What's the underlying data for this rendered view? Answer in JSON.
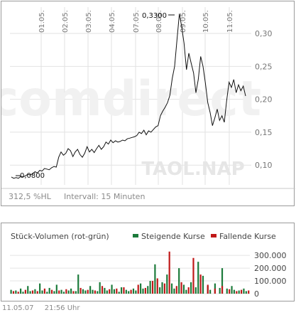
{
  "price_panel": {
    "watermark_brand": "comdirect",
    "watermark_symbol": "TAOL.NAP",
    "performance_label": "312,5 %HL",
    "interval_label": "Intervall: 15 Minuten",
    "high_label": "0,3300",
    "low_label": "0,0800"
  },
  "volume_panel": {
    "title": "Stück-Volumen (rot-grün)",
    "legend_up_label": "Steigende Kurse",
    "legend_down_label": "Fallende Kurse",
    "legend_up_color": "#1b7a3a",
    "legend_down_color": "#c01818"
  },
  "footer": {
    "date": "11.05.07",
    "time": "21:56 Uhr"
  },
  "chart_data": [
    {
      "type": "line",
      "x_tick_labels": [
        "01.05.",
        "02.05.",
        "03.05.",
        "04.05.",
        "07.05.",
        "08.05.",
        "09.05.",
        "10.05.",
        "11.05."
      ],
      "y_tick_labels": [
        "0,30",
        "0,25",
        "0,20",
        "0,15",
        "0,10"
      ],
      "ylim": [
        0.07,
        0.34
      ],
      "grid": true,
      "annotations": [
        "0,3300",
        "0,0800"
      ],
      "series": [
        {
          "values": [
            0.082,
            0.08,
            0.081,
            0.08,
            0.083,
            0.082,
            0.084,
            0.086,
            0.085,
            0.087,
            0.09,
            0.088,
            0.092,
            0.091,
            0.095,
            0.094,
            0.093,
            0.096,
            0.098,
            0.097,
            0.112,
            0.12,
            0.115,
            0.118,
            0.125,
            0.122,
            0.113,
            0.12,
            0.124,
            0.116,
            0.112,
            0.118,
            0.128,
            0.12,
            0.124,
            0.119,
            0.125,
            0.13,
            0.124,
            0.128,
            0.135,
            0.132,
            0.138,
            0.134,
            0.137,
            0.135,
            0.136,
            0.138,
            0.137,
            0.14,
            0.141,
            0.142,
            0.143,
            0.145,
            0.15,
            0.148,
            0.153,
            0.146,
            0.152,
            0.15,
            0.154,
            0.158,
            0.16,
            0.175,
            0.182,
            0.188,
            0.195,
            0.206,
            0.232,
            0.25,
            0.29,
            0.33,
            0.31,
            0.285,
            0.245,
            0.27,
            0.255,
            0.24,
            0.21,
            0.23,
            0.265,
            0.25,
            0.225,
            0.195,
            0.18,
            0.16,
            0.172,
            0.185,
            0.168,
            0.175,
            0.165,
            0.198,
            0.226,
            0.218,
            0.23,
            0.21,
            0.222,
            0.213,
            0.22,
            0.205
          ]
        }
      ]
    },
    {
      "type": "bar",
      "y_tick_labels": [
        "300.000",
        "200.000",
        "100.000",
        "0"
      ],
      "ylim": [
        0,
        340000
      ],
      "series": [
        {
          "name": "Steigende Kurse",
          "values": [
            30000,
            0,
            25000,
            0,
            40000,
            15000,
            0,
            60000,
            20000,
            0,
            35000,
            0,
            80000,
            25000,
            0,
            15000,
            45000,
            0,
            20000,
            70000,
            0,
            30000,
            15000,
            0,
            25000,
            40000,
            0,
            20000,
            150000,
            0,
            35000,
            25000,
            0,
            60000,
            30000,
            0,
            20000,
            90000,
            0,
            45000,
            25000,
            0,
            70000,
            35000,
            0,
            15000,
            50000,
            0,
            30000,
            20000,
            0,
            40000,
            25000,
            0,
            80000,
            40000,
            0,
            60000,
            100000,
            0,
            230000,
            0,
            50000,
            90000,
            0,
            150000,
            0,
            80000,
            40000,
            0,
            200000,
            0,
            70000,
            30000,
            0,
            90000,
            0,
            50000,
            250000,
            0,
            140000,
            0,
            60000,
            30000,
            0,
            80000,
            0,
            45000,
            200000,
            0,
            40000,
            0,
            60000,
            30000,
            0,
            25000,
            0,
            40000,
            20000,
            0
          ]
        },
        {
          "name": "Fallende Kurse",
          "values": [
            0,
            20000,
            0,
            15000,
            0,
            0,
            30000,
            0,
            0,
            25000,
            0,
            20000,
            0,
            0,
            40000,
            0,
            0,
            30000,
            0,
            0,
            25000,
            0,
            0,
            35000,
            0,
            0,
            20000,
            0,
            0,
            45000,
            0,
            0,
            30000,
            0,
            0,
            25000,
            0,
            0,
            60000,
            0,
            0,
            35000,
            0,
            0,
            40000,
            0,
            0,
            50000,
            0,
            0,
            30000,
            0,
            0,
            70000,
            0,
            0,
            45000,
            0,
            0,
            100000,
            0,
            120000,
            0,
            0,
            80000,
            0,
            330000,
            0,
            0,
            60000,
            0,
            90000,
            0,
            0,
            50000,
            0,
            280000,
            0,
            0,
            150000,
            0,
            0,
            70000,
            0,
            0,
            40000,
            0,
            0,
            60000,
            0,
            0,
            35000,
            0,
            0,
            20000,
            0,
            30000,
            0,
            0,
            25000
          ]
        }
      ]
    }
  ]
}
